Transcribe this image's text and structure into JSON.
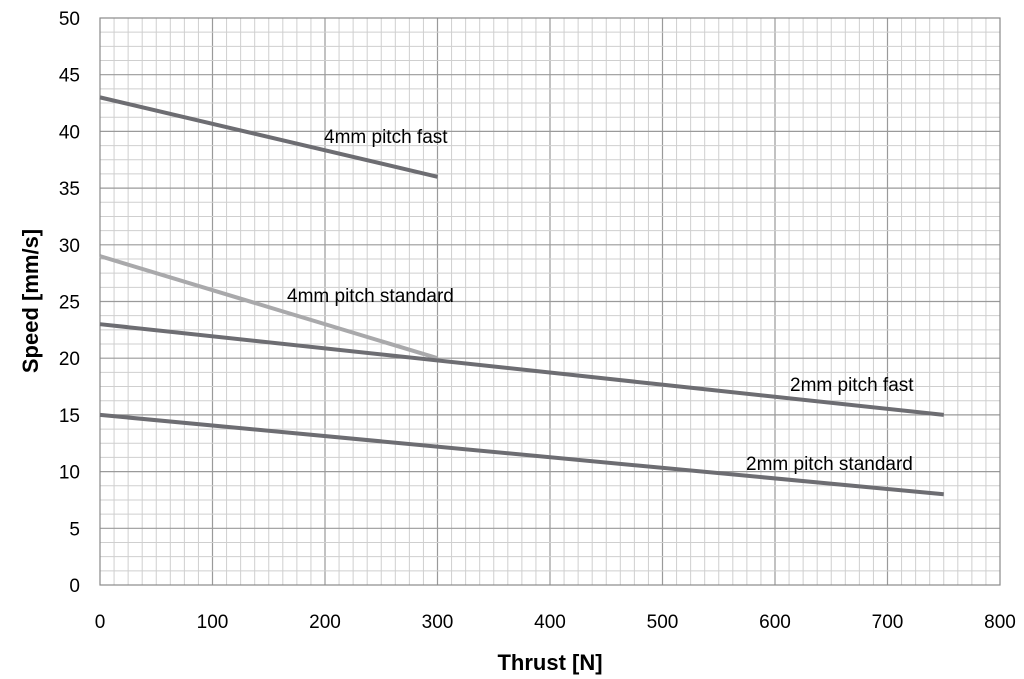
{
  "chart_data": {
    "type": "line",
    "xlabel": "Thrust [N]",
    "ylabel": "Speed [mm/s]",
    "xlim": [
      0,
      800
    ],
    "ylim": [
      0,
      50
    ],
    "x_ticks": [
      0,
      100,
      200,
      300,
      400,
      500,
      600,
      700,
      800
    ],
    "y_ticks": [
      0,
      5,
      10,
      15,
      20,
      25,
      30,
      35,
      40,
      45,
      50
    ],
    "grid": true,
    "legend": "none",
    "series": [
      {
        "name": "4mm pitch fast",
        "color": "#6d6d72",
        "x": [
          0,
          300
        ],
        "y": [
          43,
          36
        ]
      },
      {
        "name": "4mm pitch standard",
        "color": "#a9a9ab",
        "x": [
          0,
          300
        ],
        "y": [
          29,
          20
        ]
      },
      {
        "name": "2mm pitch fast",
        "color": "#6d6d72",
        "x": [
          0,
          750
        ],
        "y": [
          23,
          15
        ]
      },
      {
        "name": "2mm pitch standard",
        "color": "#6d6d72",
        "x": [
          0,
          750
        ],
        "y": [
          15,
          8
        ]
      }
    ]
  }
}
